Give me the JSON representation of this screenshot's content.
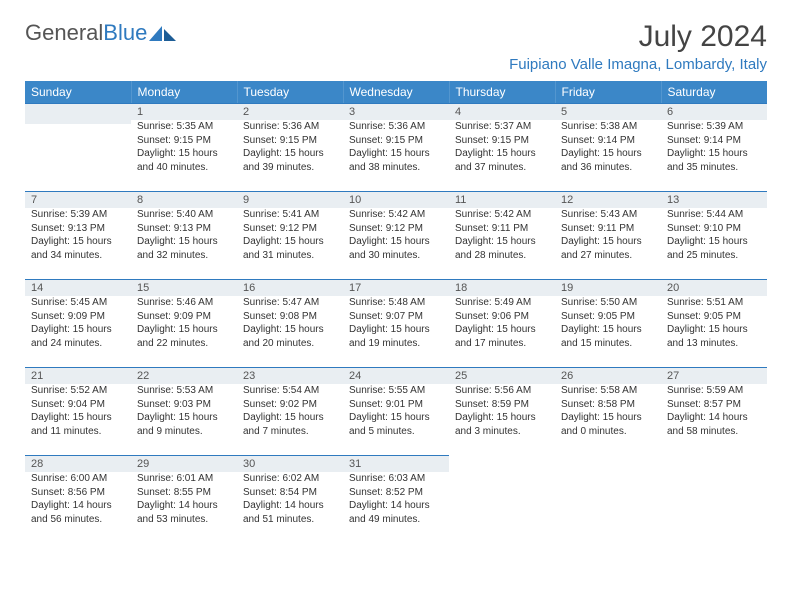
{
  "logo": {
    "word1": "General",
    "word2": "Blue"
  },
  "title": "July 2024",
  "location": "Fuipiano Valle Imagna, Lombardy, Italy",
  "colors": {
    "header_bg": "#3b87c8",
    "header_text": "#ffffff",
    "accent": "#2f7abf",
    "daynum_bg": "#e9eef2",
    "body_text": "#333333",
    "title_text": "#444444"
  },
  "layout": {
    "first_weekday_col": 1,
    "days_in_month": 31
  },
  "weekdays": [
    "Sunday",
    "Monday",
    "Tuesday",
    "Wednesday",
    "Thursday",
    "Friday",
    "Saturday"
  ],
  "days": [
    {
      "n": 1,
      "sunrise": "5:35 AM",
      "sunset": "9:15 PM",
      "daylight": "15 hours and 40 minutes."
    },
    {
      "n": 2,
      "sunrise": "5:36 AM",
      "sunset": "9:15 PM",
      "daylight": "15 hours and 39 minutes."
    },
    {
      "n": 3,
      "sunrise": "5:36 AM",
      "sunset": "9:15 PM",
      "daylight": "15 hours and 38 minutes."
    },
    {
      "n": 4,
      "sunrise": "5:37 AM",
      "sunset": "9:15 PM",
      "daylight": "15 hours and 37 minutes."
    },
    {
      "n": 5,
      "sunrise": "5:38 AM",
      "sunset": "9:14 PM",
      "daylight": "15 hours and 36 minutes."
    },
    {
      "n": 6,
      "sunrise": "5:39 AM",
      "sunset": "9:14 PM",
      "daylight": "15 hours and 35 minutes."
    },
    {
      "n": 7,
      "sunrise": "5:39 AM",
      "sunset": "9:13 PM",
      "daylight": "15 hours and 34 minutes."
    },
    {
      "n": 8,
      "sunrise": "5:40 AM",
      "sunset": "9:13 PM",
      "daylight": "15 hours and 32 minutes."
    },
    {
      "n": 9,
      "sunrise": "5:41 AM",
      "sunset": "9:12 PM",
      "daylight": "15 hours and 31 minutes."
    },
    {
      "n": 10,
      "sunrise": "5:42 AM",
      "sunset": "9:12 PM",
      "daylight": "15 hours and 30 minutes."
    },
    {
      "n": 11,
      "sunrise": "5:42 AM",
      "sunset": "9:11 PM",
      "daylight": "15 hours and 28 minutes."
    },
    {
      "n": 12,
      "sunrise": "5:43 AM",
      "sunset": "9:11 PM",
      "daylight": "15 hours and 27 minutes."
    },
    {
      "n": 13,
      "sunrise": "5:44 AM",
      "sunset": "9:10 PM",
      "daylight": "15 hours and 25 minutes."
    },
    {
      "n": 14,
      "sunrise": "5:45 AM",
      "sunset": "9:09 PM",
      "daylight": "15 hours and 24 minutes."
    },
    {
      "n": 15,
      "sunrise": "5:46 AM",
      "sunset": "9:09 PM",
      "daylight": "15 hours and 22 minutes."
    },
    {
      "n": 16,
      "sunrise": "5:47 AM",
      "sunset": "9:08 PM",
      "daylight": "15 hours and 20 minutes."
    },
    {
      "n": 17,
      "sunrise": "5:48 AM",
      "sunset": "9:07 PM",
      "daylight": "15 hours and 19 minutes."
    },
    {
      "n": 18,
      "sunrise": "5:49 AM",
      "sunset": "9:06 PM",
      "daylight": "15 hours and 17 minutes."
    },
    {
      "n": 19,
      "sunrise": "5:50 AM",
      "sunset": "9:05 PM",
      "daylight": "15 hours and 15 minutes."
    },
    {
      "n": 20,
      "sunrise": "5:51 AM",
      "sunset": "9:05 PM",
      "daylight": "15 hours and 13 minutes."
    },
    {
      "n": 21,
      "sunrise": "5:52 AM",
      "sunset": "9:04 PM",
      "daylight": "15 hours and 11 minutes."
    },
    {
      "n": 22,
      "sunrise": "5:53 AM",
      "sunset": "9:03 PM",
      "daylight": "15 hours and 9 minutes."
    },
    {
      "n": 23,
      "sunrise": "5:54 AM",
      "sunset": "9:02 PM",
      "daylight": "15 hours and 7 minutes."
    },
    {
      "n": 24,
      "sunrise": "5:55 AM",
      "sunset": "9:01 PM",
      "daylight": "15 hours and 5 minutes."
    },
    {
      "n": 25,
      "sunrise": "5:56 AM",
      "sunset": "8:59 PM",
      "daylight": "15 hours and 3 minutes."
    },
    {
      "n": 26,
      "sunrise": "5:58 AM",
      "sunset": "8:58 PM",
      "daylight": "15 hours and 0 minutes."
    },
    {
      "n": 27,
      "sunrise": "5:59 AM",
      "sunset": "8:57 PM",
      "daylight": "14 hours and 58 minutes."
    },
    {
      "n": 28,
      "sunrise": "6:00 AM",
      "sunset": "8:56 PM",
      "daylight": "14 hours and 56 minutes."
    },
    {
      "n": 29,
      "sunrise": "6:01 AM",
      "sunset": "8:55 PM",
      "daylight": "14 hours and 53 minutes."
    },
    {
      "n": 30,
      "sunrise": "6:02 AM",
      "sunset": "8:54 PM",
      "daylight": "14 hours and 51 minutes."
    },
    {
      "n": 31,
      "sunrise": "6:03 AM",
      "sunset": "8:52 PM",
      "daylight": "14 hours and 49 minutes."
    }
  ],
  "labels": {
    "sunrise": "Sunrise:",
    "sunset": "Sunset:",
    "daylight": "Daylight:"
  }
}
